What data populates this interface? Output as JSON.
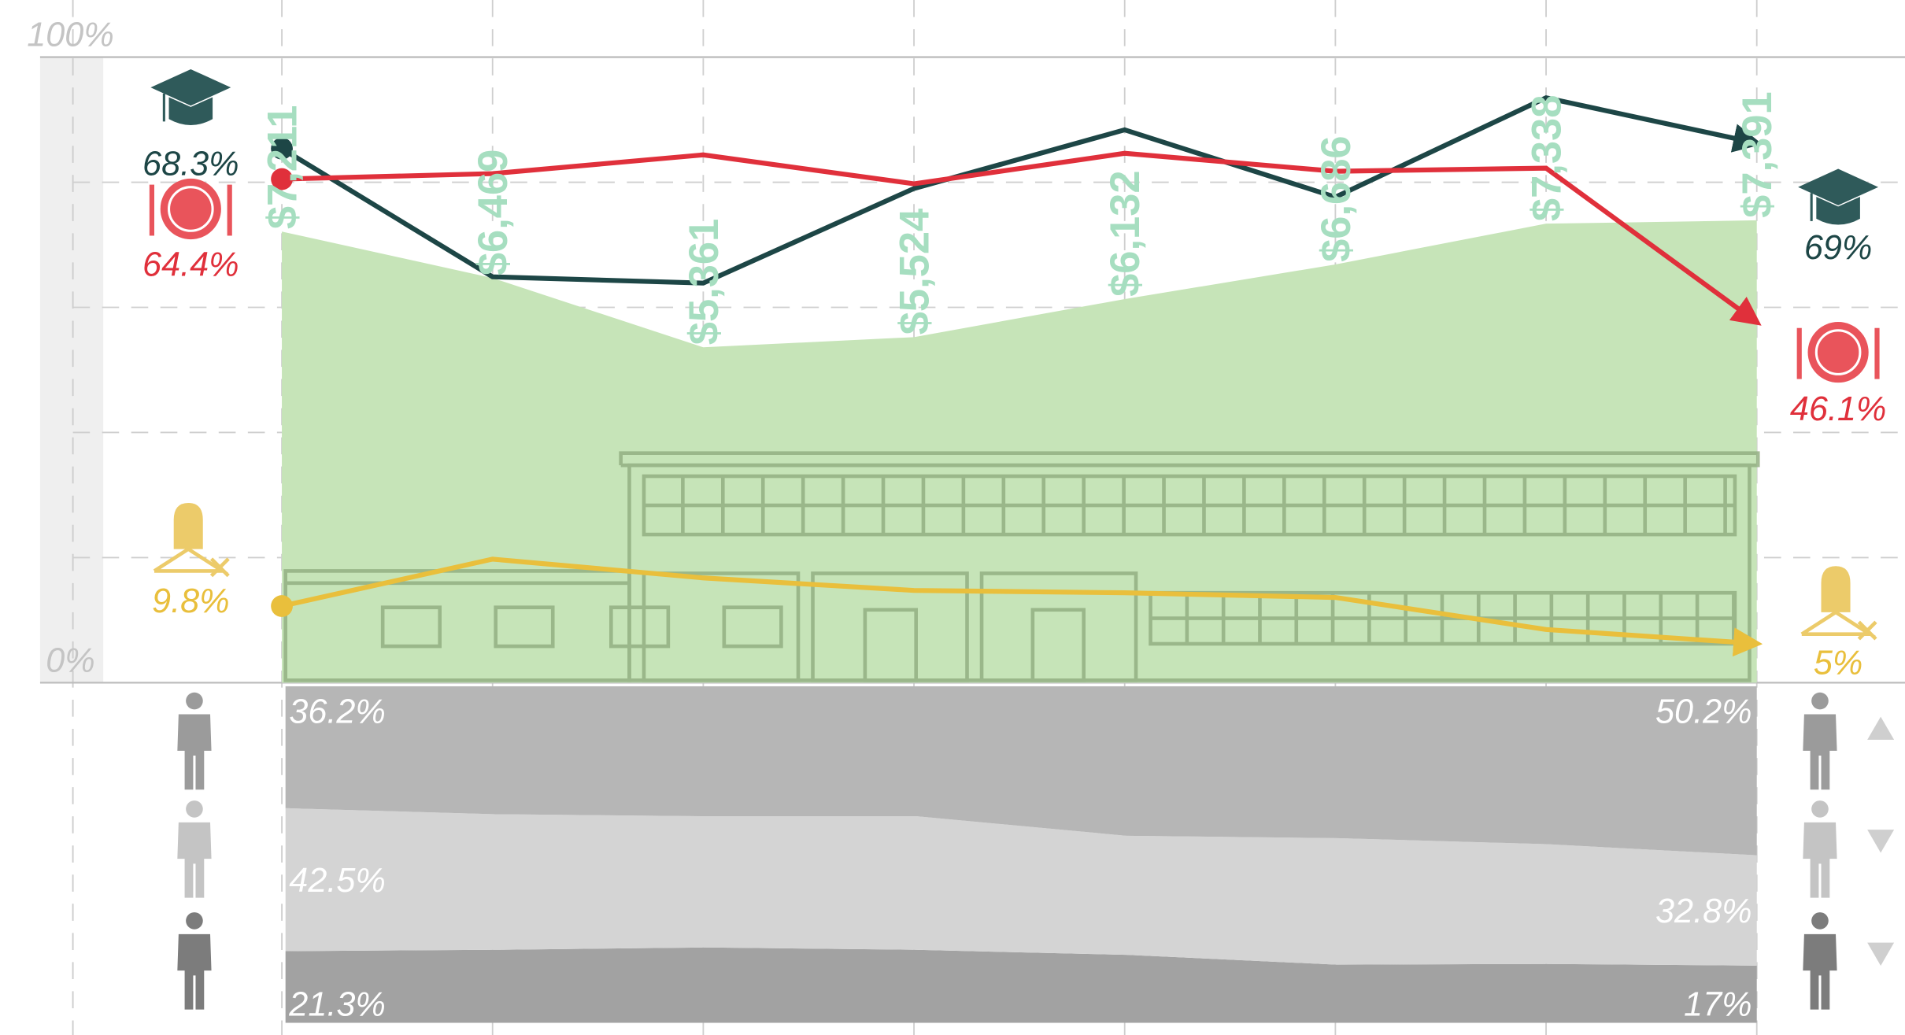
{
  "chart_data": [
    {
      "type": "line",
      "categories": [
        null,
        null,
        null,
        null,
        null,
        null,
        null,
        null
      ],
      "ylim": [
        0,
        100
      ],
      "yticks": [
        {
          "value": 0,
          "label": "0%"
        },
        {
          "value": 20,
          "label": null
        },
        {
          "value": 40,
          "label": null
        },
        {
          "value": 60,
          "label": null
        },
        {
          "value": 80,
          "label": null
        },
        {
          "value": 100,
          "label": "100%"
        }
      ],
      "grid": true,
      "y2lim": [
        0,
        80
      ],
      "y3lim": [
        0,
        10000
      ],
      "series": [
        {
          "type": "area",
          "axis": "y3",
          "color": "#c6e4b8",
          "label_color": "#a6dec0",
          "values": [
            7211,
            6469,
            5361,
            5524,
            6132,
            6686,
            7338,
            7391
          ],
          "value_labels": [
            "$7,211",
            "$6,469",
            "$5,361",
            "$5,524",
            "$6,132",
            "$6,686",
            "$7,338",
            "$7,391"
          ]
        },
        {
          "axis": "y2",
          "color": "#1d4646",
          "values": [
            68.3,
            51.9,
            51.1,
            63.2,
            70.7,
            62.1,
            74.8,
            69
          ],
          "value_labels": [
            "68.3%",
            null,
            null,
            null,
            null,
            null,
            null,
            "69%"
          ]
        },
        {
          "axis": "y2",
          "color": "#e0303b",
          "values": [
            64.4,
            65.1,
            67.5,
            63.8,
            67.7,
            65.4,
            65.8,
            46.1
          ],
          "value_labels": [
            "64.4%",
            null,
            null,
            null,
            null,
            null,
            null,
            "46.1%"
          ]
        },
        {
          "axis": "y2",
          "color": "#e9bf3c",
          "values": [
            9.8,
            15.8,
            13.4,
            11.8,
            11.5,
            10.9,
            6.8,
            5
          ],
          "value_labels": [
            "9.8%",
            null,
            null,
            null,
            null,
            null,
            null,
            "5%"
          ]
        }
      ]
    },
    {
      "type": "area",
      "stacked": true,
      "categories": [
        null,
        null,
        null,
        null,
        null,
        null,
        null,
        null
      ],
      "ylim": [
        0,
        100
      ],
      "series": [
        {
          "color": "#a2a2a2",
          "values": [
            21.3,
            21.7,
            22.4,
            21.7,
            20.2,
            17.3,
            17.5,
            17
          ],
          "value_labels": [
            "21.3%",
            null,
            null,
            null,
            null,
            null,
            null,
            "17%"
          ]
        },
        {
          "color": "#d4d4d4",
          "values": [
            42.5,
            40.3,
            39.0,
            39.7,
            35.4,
            37.6,
            35.6,
            32.8
          ],
          "value_labels": [
            "42.5%",
            null,
            null,
            null,
            null,
            null,
            null,
            "32.8%"
          ]
        },
        {
          "color": "#b6b6b6",
          "values": [
            36.2,
            38,
            38.6,
            38.6,
            44.4,
            45.1,
            46.9,
            50.2
          ],
          "value_labels": [
            "36.2%",
            null,
            null,
            null,
            null,
            null,
            null,
            "50.2%"
          ]
        }
      ]
    }
  ]
}
